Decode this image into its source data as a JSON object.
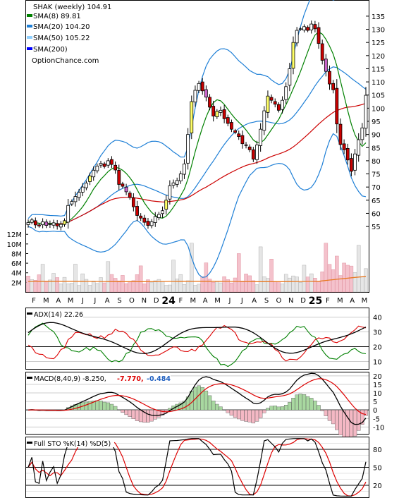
{
  "chart_data": {
    "type": "stock-chart",
    "legend": {
      "title": "SHAK (weekly) 104.91",
      "items": [
        {
          "label": "SMA(8) 89.81",
          "color": "#008000"
        },
        {
          "label": "SMA(20) 104.20",
          "color": "#1e7fd6"
        },
        {
          "label": "SMA(50) 105.22",
          "color": "#8fd0ff"
        },
        {
          "label": "SMA(200)",
          "color": "#0000ff"
        }
      ],
      "source": "OptionChance.com"
    },
    "price_axis": {
      "ticks": [
        55,
        60,
        65,
        70,
        75,
        80,
        85,
        90,
        95,
        100,
        105,
        110,
        115,
        120,
        125,
        130,
        135
      ],
      "range": [
        51,
        139
      ]
    },
    "volume_axis": {
      "ticks": [
        "2M",
        "4M",
        "6M",
        "8M",
        "10M",
        "12M"
      ],
      "tick_values": [
        2,
        4,
        6,
        8,
        10,
        12
      ],
      "range": [
        0,
        13.5
      ]
    },
    "time_axis": {
      "labels": [
        "F",
        "M",
        "A",
        "M",
        "J",
        "J",
        "A",
        "S",
        "O",
        "N",
        "D",
        "24",
        "F",
        "M",
        "A",
        "M",
        "J",
        "J",
        "A",
        "S",
        "O",
        "N",
        "D",
        "25",
        "F",
        "M",
        "A",
        "M"
      ],
      "bold_labels": [
        "24",
        "25"
      ]
    },
    "weekly_close": [
      56.5,
      57.5,
      55.6,
      55.2,
      56.8,
      55.4,
      56.0,
      56.4,
      55.2,
      55.8,
      57.2,
      63.0,
      64.5,
      66.4,
      68.0,
      70.0,
      71.5,
      74.2,
      76.4,
      78.0,
      79.0,
      77.8,
      80.0,
      78.6,
      76.5,
      71.0,
      70.3,
      68.2,
      66.0,
      62.5,
      59.2,
      58.2,
      56.6,
      55.4,
      56.8,
      58.8,
      59.6,
      61.0,
      65.0,
      70.5,
      71.6,
      72.5,
      75.0,
      78.8,
      90.0,
      102.5,
      106.8,
      109.4,
      106.6,
      104.2,
      100.4,
      97.0,
      98.8,
      99.2,
      96.0,
      94.2,
      92.0,
      90.8,
      89.2,
      86.5,
      85.8,
      84.2,
      80.6,
      86.0,
      92.0,
      99.0,
      104.6,
      103.0,
      101.5,
      99.2,
      103.0,
      108.2,
      115.0,
      125.0,
      129.6,
      130.2,
      131.0,
      129.6,
      132.0,
      130.2,
      124.6,
      118.2,
      114.0,
      109.2,
      107.0,
      94.0,
      86.2,
      84.2,
      80.3,
      76.0,
      82.6,
      88.0,
      92.5,
      104.91
    ],
    "series_last_values": {
      "SMA(8)": 89.81,
      "SMA(20)": 104.2,
      "SMA(50)": 105.22
    },
    "indicators": [
      {
        "name": "ADX(14)",
        "label": "ADX(14) 22.26",
        "value": 22.26,
        "ticks": [
          10,
          20,
          30,
          40
        ],
        "range": [
          5,
          46
        ],
        "lines": {
          "ADX": "#000000",
          "+DI": "#008000",
          "-DI": "#dd0000"
        }
      },
      {
        "name": "MACD(8,40,9)",
        "label": "MACD(8,40,9) -8.250,",
        "macd": -8.25,
        "signal": -7.77,
        "signal_label": "-7.770,",
        "histogram": -0.484,
        "histogram_label": "-0.484",
        "ticks": [
          -10,
          -5,
          0,
          5,
          10,
          15,
          20
        ],
        "range": [
          -14,
          22
        ]
      },
      {
        "name": "Full STO %K(14) %D(5)",
        "label": "Full STO %K(14) %D(5)",
        "ticks": [
          20,
          50,
          80
        ],
        "range": [
          0,
          100
        ]
      }
    ]
  }
}
